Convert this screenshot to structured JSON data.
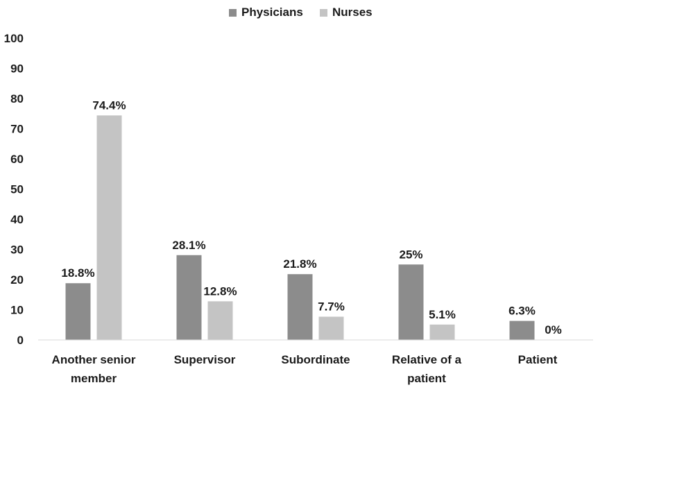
{
  "chart_data": {
    "type": "bar",
    "title": "",
    "xlabel": "",
    "ylabel": "",
    "ylim": [
      0,
      100
    ],
    "yticks": [
      0,
      10,
      20,
      30,
      40,
      50,
      60,
      70,
      80,
      90,
      100
    ],
    "grid": false,
    "legend_position": "top-center",
    "categories": [
      [
        "Another senior",
        "member"
      ],
      [
        "Supervisor"
      ],
      [
        "Subordinate"
      ],
      [
        "Relative of a",
        "patient"
      ],
      [
        "Patient"
      ]
    ],
    "series": [
      {
        "name": "Physicians",
        "color": "#8c8c8c",
        "values": [
          18.8,
          28.1,
          21.8,
          25,
          6.3
        ],
        "labels": [
          "18.8%",
          "28.1%",
          "21.8%",
          "25%",
          "6.3%"
        ]
      },
      {
        "name": "Nurses",
        "color": "#c4c4c4",
        "values": [
          74.4,
          12.8,
          7.7,
          5.1,
          0
        ],
        "labels": [
          "74.4%",
          "12.8%",
          "7.7%",
          "5.1%",
          "0%"
        ]
      }
    ]
  }
}
